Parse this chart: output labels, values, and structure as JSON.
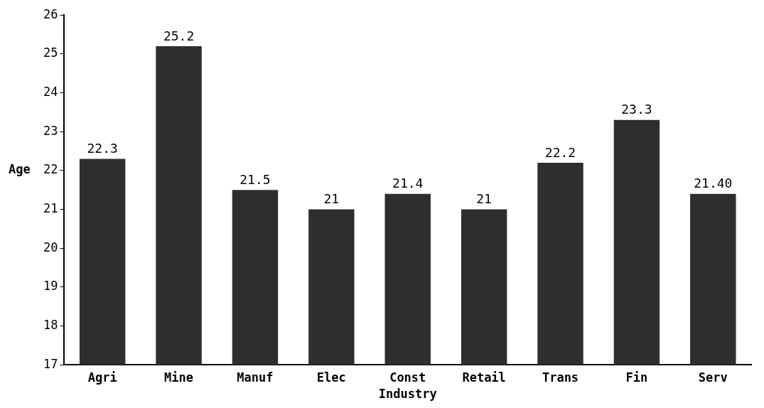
{
  "chart_data": {
    "type": "bar",
    "xlabel": "Industry",
    "ylabel": "Age",
    "categories": [
      "Agri",
      "Mine",
      "Manuf",
      "Elec",
      "Const",
      "Retail",
      "Trans",
      "Fin",
      "Serv"
    ],
    "values": [
      22.3,
      25.2,
      21.5,
      21,
      21.4,
      21,
      22.2,
      23.3,
      21.4
    ],
    "value_labels": [
      "22.3",
      "25.2",
      "21.5",
      "21",
      "21.4",
      "21",
      "22.2",
      "23.3",
      "21.40"
    ],
    "color": "#2e2e2e",
    "ylim": [
      17,
      26
    ],
    "yticks": [
      17,
      18,
      19,
      20,
      21,
      22,
      23,
      24,
      25,
      26
    ],
    "grid": false,
    "legend": false
  }
}
